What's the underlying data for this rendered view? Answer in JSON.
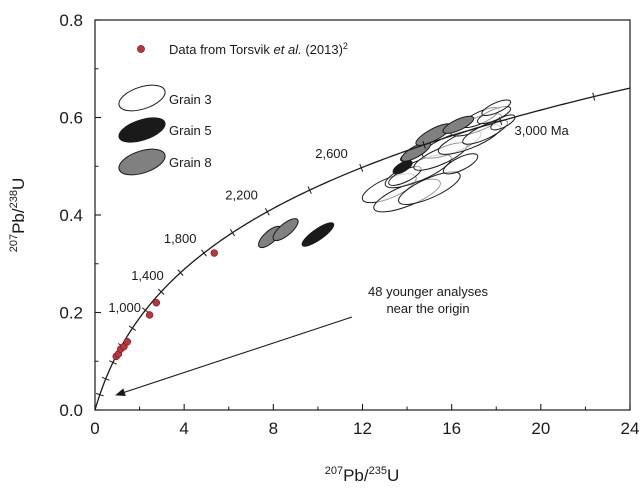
{
  "chart_data": {
    "type": "scatter",
    "xlabel": {
      "sup1": "207",
      "base1": "Pb/",
      "sup2": "235",
      "base2": "U"
    },
    "ylabel": {
      "sup1": "207",
      "base1": "Pb/",
      "sup2": "238",
      "base2": "U"
    },
    "xlim": [
      0,
      24
    ],
    "ylim": [
      0,
      0.8
    ],
    "x_ticks": [
      "0",
      "4",
      "8",
      "12",
      "16",
      "20",
      "24"
    ],
    "y_ticks": [
      "0.0",
      "0.2",
      "0.4",
      "0.6",
      "0.8"
    ],
    "grid": false,
    "legend": {
      "placement": "top-left",
      "entries": [
        {
          "label_pre": "Data from Torsvik ",
          "label_em": "et al.",
          "label_post": " (2013)",
          "label_sup": "2",
          "marker": "circle",
          "fill": "#c0343c"
        },
        {
          "label": "Grain 3",
          "marker": "ellipse",
          "fill": "#ffffff"
        },
        {
          "label": "Grain 5",
          "marker": "ellipse",
          "fill": "#1a1a1a"
        },
        {
          "label": "Grain 8",
          "marker": "ellipse",
          "fill": "#808080"
        }
      ]
    },
    "concordia_labels": [
      {
        "text": "1,000",
        "age_ma": 1000
      },
      {
        "text": "1,400",
        "age_ma": 1400
      },
      {
        "text": "1,800",
        "age_ma": 1800
      },
      {
        "text": "2,200",
        "age_ma": 2200
      },
      {
        "text": "2,600",
        "age_ma": 2600
      },
      {
        "text": "3,000 Ma",
        "age_ma": 3000
      }
    ],
    "annotation": {
      "line1": "48 younger analyses",
      "line2": "near the origin",
      "arrow_target": [
        0.9,
        0.03
      ]
    },
    "series": [
      {
        "name": "Data from Torsvik et al. (2013)",
        "points": [
          [
            0.95,
            0.11
          ],
          [
            1.05,
            0.115
          ],
          [
            1.15,
            0.125
          ],
          [
            1.3,
            0.13
          ],
          [
            1.45,
            0.14
          ],
          [
            2.45,
            0.195
          ],
          [
            2.75,
            0.22
          ],
          [
            5.35,
            0.322
          ]
        ]
      },
      {
        "name": "Grain 3",
        "ellipses": [
          [
            13.2,
            0.455,
            1.3,
            0.02,
            23
          ],
          [
            14.0,
            0.44,
            1.6,
            0.021,
            22
          ],
          [
            15.0,
            0.455,
            1.5,
            0.02,
            24
          ],
          [
            14.5,
            0.49,
            1.6,
            0.02,
            23
          ],
          [
            13.9,
            0.48,
            0.8,
            0.012,
            26
          ],
          [
            16.0,
            0.545,
            1.4,
            0.018,
            21
          ],
          [
            15.5,
            0.52,
            1.3,
            0.016,
            24
          ],
          [
            16.8,
            0.555,
            1.5,
            0.018,
            22
          ],
          [
            17.1,
            0.585,
            1.2,
            0.014,
            20
          ],
          [
            17.5,
            0.57,
            1.1,
            0.014,
            25
          ],
          [
            17.3,
            0.6,
            0.9,
            0.012,
            25
          ],
          [
            17.9,
            0.605,
            0.8,
            0.011,
            23
          ],
          [
            18.0,
            0.62,
            0.7,
            0.01,
            24
          ],
          [
            16.4,
            0.505,
            0.85,
            0.013,
            26
          ],
          [
            18.3,
            0.59,
            0.6,
            0.01,
            27
          ]
        ]
      },
      {
        "name": "Grain 5",
        "ellipses": [
          [
            10.0,
            0.36,
            0.85,
            0.011,
            35
          ],
          [
            13.8,
            0.498,
            0.48,
            0.009,
            30
          ],
          [
            14.25,
            0.525,
            0.6,
            0.009,
            27
          ]
        ]
      },
      {
        "name": "Grain 8",
        "ellipses": [
          [
            7.85,
            0.355,
            0.65,
            0.012,
            42
          ],
          [
            8.55,
            0.37,
            0.7,
            0.012,
            40
          ],
          [
            14.4,
            0.53,
            0.75,
            0.011,
            30
          ],
          [
            15.2,
            0.565,
            0.9,
            0.012,
            28
          ],
          [
            16.3,
            0.585,
            0.75,
            0.011,
            25
          ]
        ]
      }
    ]
  }
}
